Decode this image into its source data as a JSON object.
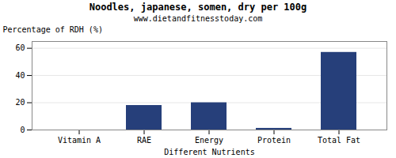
{
  "chart_data": {
    "type": "bar",
    "title": "Noodles, japanese, somen, dry per 100g",
    "subtitle": "www.dietandfitnesstoday.com",
    "xlabel": "Different Nutrients",
    "ylabel": "Percentage of RDH (%)",
    "categories": [
      "Vitamin A",
      "RAE",
      "Energy",
      "Protein",
      "Total Fat"
    ],
    "values": [
      0.0,
      18.0,
      20.0,
      1.2,
      57.0
    ],
    "color": "#263f7a",
    "ylim": [
      0,
      65
    ],
    "yticks": [
      0,
      20,
      40,
      60
    ],
    "grid": true
  }
}
